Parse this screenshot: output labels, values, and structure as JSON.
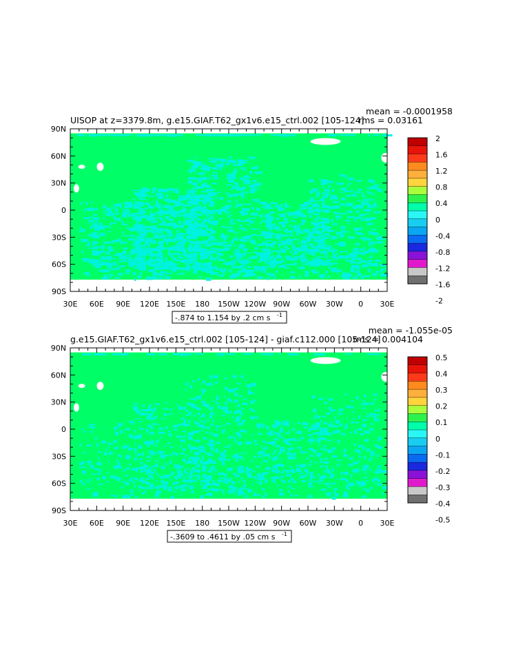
{
  "chart_data": [
    {
      "type": "heatmap",
      "title": "UISOP at z=3379.8m, g.e15.GIAF.T62_gx1v6.e15_ctrl.002 [105-124]",
      "stats": {
        "mean": "mean = -0.0001958",
        "rms": "rms = 0.03161"
      },
      "x_tick_labels": [
        "30E",
        "60E",
        "90E",
        "120E",
        "150E",
        "180",
        "150W",
        "120W",
        "90W",
        "60W",
        "30W",
        "0",
        "30E"
      ],
      "y_tick_labels": [
        "90N",
        "60N",
        "30N",
        "0",
        "30S",
        "60S",
        "90S"
      ],
      "xlim": [
        30,
        390
      ],
      "ylim": [
        -90,
        90
      ],
      "contour_info": "-.874 to 1.154 by .2 cm s",
      "contour_info_sup": "-1",
      "colorbar": {
        "labels": [
          "2",
          "1.6",
          "1.2",
          "0.8",
          "0.4",
          "0",
          "-0.4",
          "-0.8",
          "-1.2",
          "-1.6",
          "-2"
        ],
        "colors": [
          "#c00000",
          "#e8140a",
          "#ff3a1a",
          "#ff8a1e",
          "#ffb03c",
          "#ffd43c",
          "#aaff3c",
          "#2ef24c",
          "#00ffaa",
          "#2af6f6",
          "#18cdf0",
          "#0aa6f2",
          "#0a6af2",
          "#1a28e0",
          "#8a12d8",
          "#e01acc",
          "#c8c8c8",
          "#707070"
        ]
      },
      "field_colors": {
        "base": "#00ff66",
        "low": "#00f2e0",
        "land": "#ffffff"
      }
    },
    {
      "type": "heatmap",
      "title": "g.e15.GIAF.T62_gx1v6.e15_ctrl.002 [105-124] - giaf.c112.000 [105-124]",
      "stats": {
        "mean": "mean = -1.055e-05",
        "rms": "rms = 0.004104"
      },
      "x_tick_labels": [
        "30E",
        "60E",
        "90E",
        "120E",
        "150E",
        "180",
        "150W",
        "120W",
        "90W",
        "60W",
        "30W",
        "0",
        "30E"
      ],
      "y_tick_labels": [
        "90N",
        "60N",
        "30N",
        "0",
        "30S",
        "60S",
        "90S"
      ],
      "xlim": [
        30,
        390
      ],
      "ylim": [
        -90,
        90
      ],
      "contour_info": "-.3609 to .4611 by .05 cm s",
      "contour_info_sup": "-1",
      "colorbar": {
        "labels": [
          "0.5",
          "0.4",
          "0.3",
          "0.2",
          "0.1",
          "0",
          "-0.1",
          "-0.2",
          "-0.3",
          "-0.4",
          "-0.5"
        ],
        "colors": [
          "#c00000",
          "#e8140a",
          "#ff3a1a",
          "#ff8a1e",
          "#ffb03c",
          "#ffd43c",
          "#aaff3c",
          "#2ef24c",
          "#00ffaa",
          "#2af6f6",
          "#18cdf0",
          "#0aa6f2",
          "#0a6af2",
          "#1a28e0",
          "#8a12d8",
          "#e01acc",
          "#c8c8c8",
          "#707070"
        ]
      },
      "field_colors": {
        "base": "#00ff66",
        "low": "#00f2e0",
        "land": "#ffffff"
      }
    }
  ]
}
